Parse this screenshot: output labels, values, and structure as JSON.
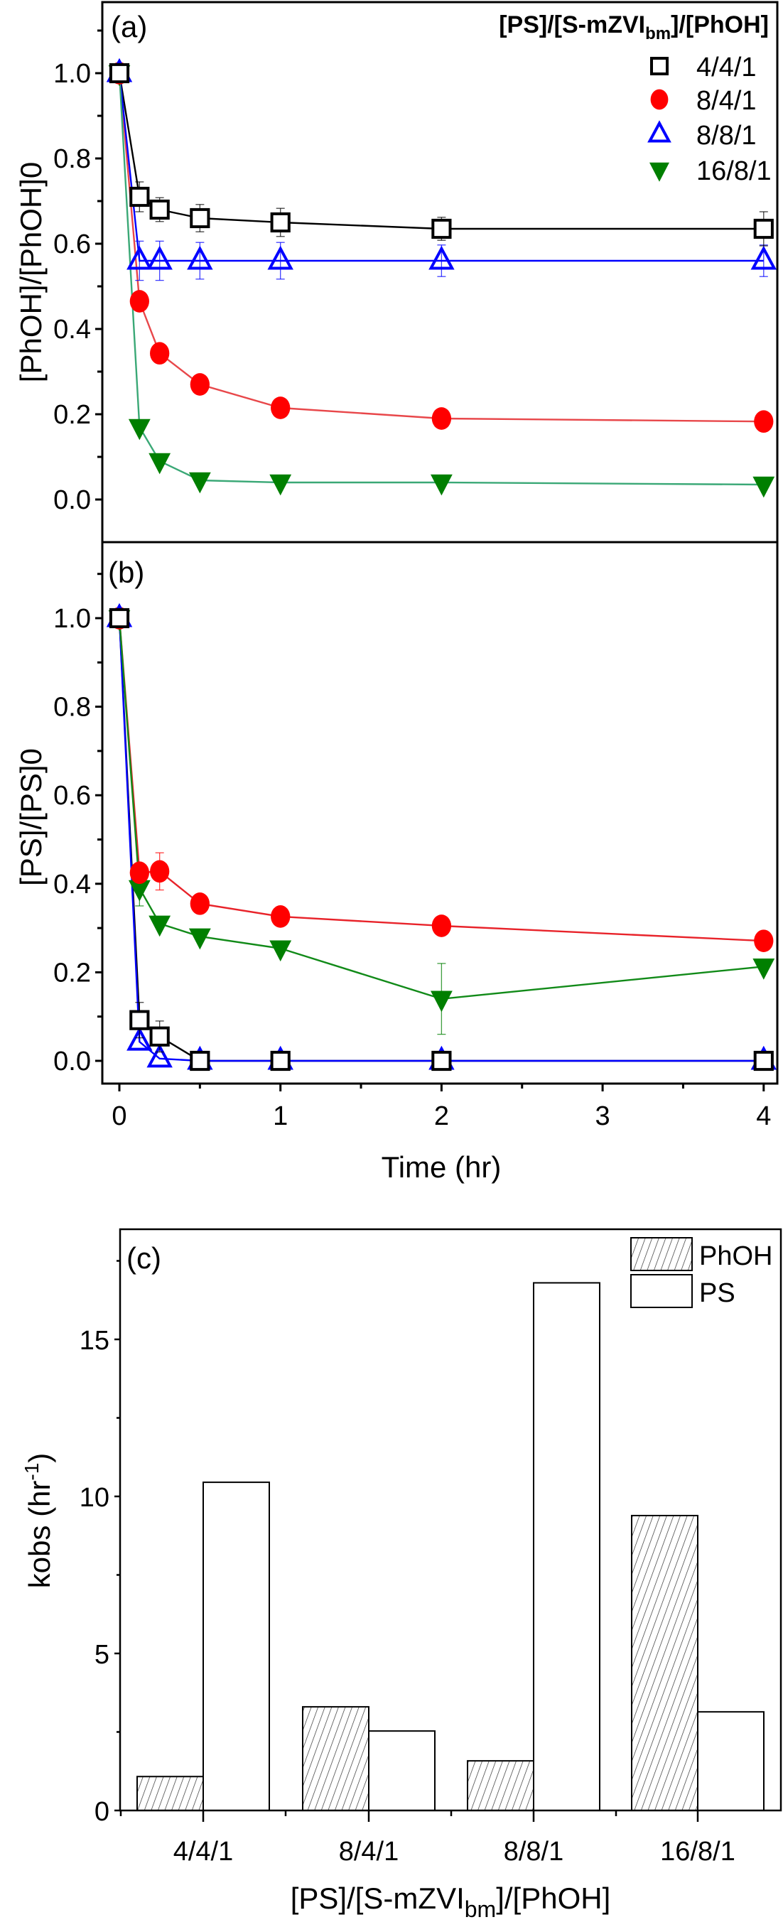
{
  "chart_data": [
    {
      "type": "line",
      "panel_label": "(a)",
      "ylabel": "[PhOH]/[PhOH]0",
      "ylabel_main": "[PhOH]/[PhOH]",
      "ylabel_sub": "0",
      "xlabel": "",
      "xlim": [
        -0.106,
        4.085
      ],
      "ylim": [
        -0.1,
        1.167
      ],
      "yticks": [
        0.0,
        0.2,
        0.4,
        0.6,
        0.8,
        1.0
      ],
      "yticklabels": [
        "0.0",
        "0.2",
        "0.4",
        "0.6",
        "0.8",
        "1.0"
      ],
      "yminor": [
        0.1,
        0.3,
        0.5,
        0.7,
        0.9,
        1.1
      ],
      "legend_title": {
        "main": "[PS]/[S-mZVI",
        "sub": "bm",
        "tail": "]/[PhOH]"
      },
      "legend_position": "top-right",
      "x": [
        0,
        0.125,
        0.25,
        0.5,
        1,
        2,
        4
      ],
      "series": [
        {
          "name": "4/4/1",
          "marker": "square-open",
          "color": "#000000",
          "values": [
            1.0,
            0.71,
            0.68,
            0.66,
            0.65,
            0.635,
            0.635
          ],
          "errors": [
            0.01,
            0.035,
            0.028,
            0.032,
            0.033,
            0.027,
            0.04
          ]
        },
        {
          "name": "8/4/1",
          "marker": "circle-filled",
          "color": "#ff0000",
          "line_color": "#e8474a",
          "values": [
            1.0,
            0.465,
            0.343,
            0.27,
            0.215,
            0.19,
            0.183
          ],
          "errors": [
            0,
            0,
            0,
            0,
            0,
            0,
            0
          ]
        },
        {
          "name": "8/8/1",
          "marker": "triangle-up-open",
          "color": "#0000ff",
          "values": [
            1.0,
            0.56,
            0.56,
            0.56,
            0.56,
            0.56,
            0.56
          ],
          "errors": [
            0.01,
            0.046,
            0.046,
            0.043,
            0.043,
            0.037,
            0.037
          ]
        },
        {
          "name": "16/8/1",
          "marker": "triangle-down-filled",
          "color": "#007f00",
          "line_color": "#3aa876",
          "values": [
            1.0,
            0.17,
            0.09,
            0.045,
            0.04,
            0.04,
            0.035
          ],
          "errors": [
            0,
            0,
            0,
            0,
            0,
            0,
            0
          ]
        }
      ]
    },
    {
      "type": "line",
      "panel_label": "(b)",
      "ylabel": "[PS]/[PS]0",
      "ylabel_main": "[PS]/[PS]",
      "ylabel_sub": "0",
      "xlabel": "Time (hr)",
      "xlim": [
        -0.106,
        4.085
      ],
      "ylim": [
        -0.051,
        1.172
      ],
      "xticks": [
        0,
        1,
        2,
        3,
        4
      ],
      "xticklabels": [
        "0",
        "1",
        "2",
        "3",
        "4"
      ],
      "xminor": [
        0.5,
        1.5,
        2.5,
        3.5
      ],
      "yticks": [
        0.0,
        0.2,
        0.4,
        0.6,
        0.8,
        1.0
      ],
      "yticklabels": [
        "0.0",
        "0.2",
        "0.4",
        "0.6",
        "0.8",
        "1.0"
      ],
      "yminor": [
        0.1,
        0.3,
        0.5,
        0.7,
        0.9,
        1.1
      ],
      "x": [
        0,
        0.125,
        0.25,
        0.5,
        1,
        2,
        4
      ],
      "series": [
        {
          "name": "4/4/1",
          "marker": "square-open",
          "color": "#000000",
          "values": [
            1.0,
            0.092,
            0.055,
            0.0,
            0.0,
            0.0,
            0.0
          ],
          "errors": [
            0,
            0.04,
            0.035,
            0,
            0,
            0,
            0
          ]
        },
        {
          "name": "8/4/1",
          "marker": "circle-filled",
          "color": "#ff0000",
          "line_color": "#e8232a",
          "values": [
            1.0,
            0.425,
            0.428,
            0.355,
            0.326,
            0.305,
            0.271
          ],
          "errors": [
            0,
            0,
            0.042,
            0,
            0,
            0,
            0.016
          ]
        },
        {
          "name": "8/8/1",
          "marker": "triangle-up-open",
          "color": "#0000ff",
          "values": [
            1.0,
            0.043,
            0.005,
            0.0,
            0.0,
            0.0,
            0.0
          ],
          "errors": [
            0,
            0.01,
            0.01,
            0,
            0,
            0,
            0
          ]
        },
        {
          "name": "16/8/1",
          "marker": "triangle-down-filled",
          "color": "#007f00",
          "line_color": "#118a18",
          "values": [
            1.0,
            0.39,
            0.31,
            0.281,
            0.254,
            0.14,
            0.213
          ],
          "errors": [
            0,
            0.04,
            0,
            0,
            0,
            0.08,
            0
          ]
        }
      ]
    },
    {
      "type": "bar",
      "panel_label": "(c)",
      "categories": [
        "4/4/1",
        "8/4/1",
        "8/8/1",
        "16/8/1"
      ],
      "xlabel": {
        "main": "[PS]/[S-mZVI",
        "sub": "bm",
        "tail": "]/[PhOH]"
      },
      "ylabel": {
        "main": "kobs (hr",
        "sup": "-1",
        "tail": ")"
      },
      "ylim": [
        0,
        18.6
      ],
      "yticks": [
        0,
        5,
        10,
        15
      ],
      "yticklabels": [
        "0",
        "5",
        "10",
        "15"
      ],
      "yminor": [
        2.5,
        7.5,
        12.5,
        17.5
      ],
      "legend_position": "top-right",
      "series": [
        {
          "name": "PhOH",
          "pattern": "hatched",
          "values": [
            1.08,
            3.3,
            1.58,
            9.39
          ]
        },
        {
          "name": "PS",
          "pattern": "open",
          "values": [
            10.45,
            2.53,
            16.8,
            3.14
          ]
        }
      ]
    }
  ]
}
